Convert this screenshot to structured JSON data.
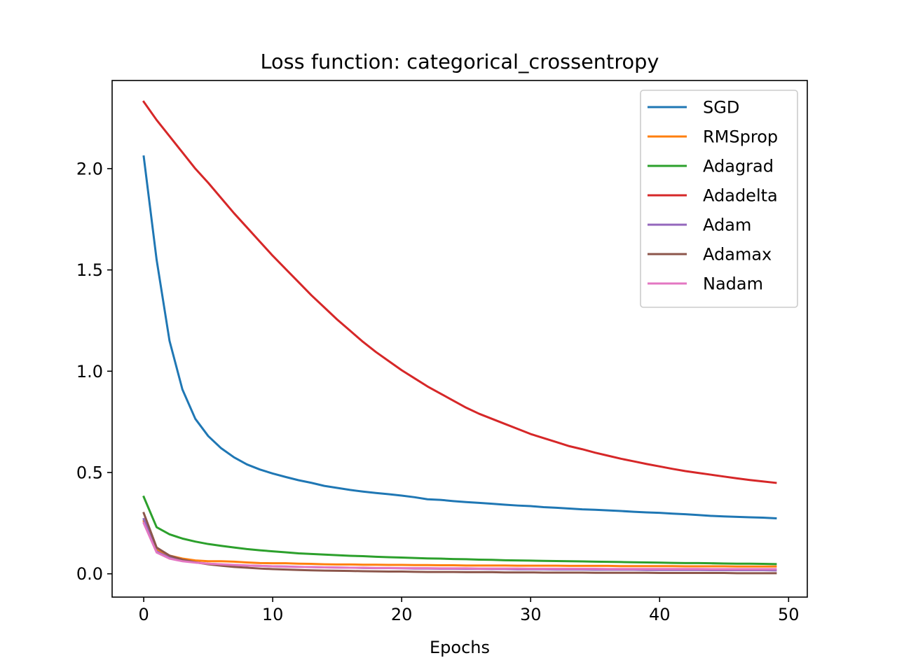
{
  "chart_data": {
    "type": "line",
    "title": "Loss function: categorical_crossentropy",
    "xlabel": "Epochs",
    "ylabel": "",
    "xlim": [
      -2.45,
      51.45
    ],
    "ylim": [
      -0.115,
      2.435
    ],
    "xticks": [
      0,
      10,
      20,
      30,
      40,
      50
    ],
    "xtick_labels": [
      "0",
      "10",
      "20",
      "30",
      "40",
      "50"
    ],
    "yticks": [
      0.0,
      0.5,
      1.0,
      1.5,
      2.0
    ],
    "ytick_labels": [
      "0.0",
      "0.5",
      "1.0",
      "1.5",
      "2.0"
    ],
    "grid": false,
    "legend_position": "top-right",
    "x": [
      0,
      1,
      2,
      3,
      4,
      5,
      6,
      7,
      8,
      9,
      10,
      11,
      12,
      13,
      14,
      15,
      16,
      17,
      18,
      19,
      20,
      21,
      22,
      23,
      24,
      25,
      26,
      27,
      28,
      29,
      30,
      31,
      32,
      33,
      34,
      35,
      36,
      37,
      38,
      39,
      40,
      41,
      42,
      43,
      44,
      45,
      46,
      47,
      48,
      49
    ],
    "series": [
      {
        "name": "SGD",
        "color": "#1f77b4",
        "values": [
          2.06,
          1.55,
          1.15,
          0.91,
          0.765,
          0.68,
          0.62,
          0.575,
          0.54,
          0.515,
          0.495,
          0.478,
          0.462,
          0.449,
          0.434,
          0.424,
          0.414,
          0.406,
          0.399,
          0.393,
          0.386,
          0.378,
          0.368,
          0.365,
          0.359,
          0.354,
          0.35,
          0.346,
          0.341,
          0.337,
          0.334,
          0.329,
          0.326,
          0.322,
          0.318,
          0.316,
          0.313,
          0.31,
          0.306,
          0.303,
          0.301,
          0.297,
          0.294,
          0.29,
          0.286,
          0.283,
          0.281,
          0.279,
          0.277,
          0.274
        ]
      },
      {
        "name": "RMSprop",
        "color": "#ff7f0e",
        "values": [
          0.26,
          0.12,
          0.09,
          0.075,
          0.066,
          0.062,
          0.062,
          0.06,
          0.056,
          0.053,
          0.052,
          0.052,
          0.05,
          0.049,
          0.047,
          0.046,
          0.046,
          0.045,
          0.045,
          0.044,
          0.044,
          0.043,
          0.043,
          0.042,
          0.042,
          0.041,
          0.041,
          0.041,
          0.041,
          0.04,
          0.04,
          0.04,
          0.04,
          0.039,
          0.039,
          0.039,
          0.039,
          0.038,
          0.038,
          0.038,
          0.038,
          0.038,
          0.037,
          0.037,
          0.037,
          0.037,
          0.036,
          0.036,
          0.036,
          0.036
        ]
      },
      {
        "name": "Adagrad",
        "color": "#2ca02c",
        "values": [
          0.38,
          0.23,
          0.195,
          0.174,
          0.159,
          0.147,
          0.138,
          0.13,
          0.122,
          0.116,
          0.111,
          0.106,
          0.101,
          0.098,
          0.095,
          0.092,
          0.089,
          0.087,
          0.084,
          0.082,
          0.08,
          0.078,
          0.076,
          0.075,
          0.073,
          0.072,
          0.07,
          0.069,
          0.067,
          0.066,
          0.065,
          0.064,
          0.063,
          0.062,
          0.061,
          0.06,
          0.059,
          0.058,
          0.057,
          0.056,
          0.055,
          0.054,
          0.053,
          0.053,
          0.052,
          0.051,
          0.05,
          0.05,
          0.049,
          0.048
        ]
      },
      {
        "name": "Adadelta",
        "color": "#d62728",
        "values": [
          2.33,
          2.24,
          2.16,
          2.08,
          2.0,
          1.93,
          1.855,
          1.78,
          1.71,
          1.64,
          1.57,
          1.505,
          1.44,
          1.375,
          1.315,
          1.255,
          1.2,
          1.145,
          1.095,
          1.05,
          1.005,
          0.965,
          0.925,
          0.89,
          0.855,
          0.82,
          0.79,
          0.765,
          0.74,
          0.715,
          0.69,
          0.67,
          0.65,
          0.63,
          0.615,
          0.598,
          0.583,
          0.568,
          0.555,
          0.542,
          0.53,
          0.518,
          0.507,
          0.498,
          0.489,
          0.48,
          0.471,
          0.463,
          0.456,
          0.449
        ]
      },
      {
        "name": "Adam",
        "color": "#9467bd",
        "values": [
          0.27,
          0.11,
          0.08,
          0.065,
          0.056,
          0.05,
          0.046,
          0.043,
          0.041,
          0.039,
          0.037,
          0.036,
          0.034,
          0.033,
          0.032,
          0.031,
          0.03,
          0.029,
          0.028,
          0.028,
          0.027,
          0.026,
          0.026,
          0.025,
          0.025,
          0.024,
          0.024,
          0.023,
          0.023,
          0.022,
          0.022,
          0.022,
          0.021,
          0.021,
          0.021,
          0.02,
          0.02,
          0.02,
          0.02,
          0.019,
          0.019,
          0.019,
          0.019,
          0.019,
          0.018,
          0.018,
          0.018,
          0.018,
          0.018,
          0.017
        ]
      },
      {
        "name": "Adamax",
        "color": "#8c564b",
        "values": [
          0.3,
          0.13,
          0.09,
          0.07,
          0.057,
          0.047,
          0.04,
          0.034,
          0.03,
          0.026,
          0.023,
          0.021,
          0.019,
          0.017,
          0.016,
          0.015,
          0.014,
          0.013,
          0.012,
          0.011,
          0.011,
          0.01,
          0.009,
          0.009,
          0.009,
          0.008,
          0.008,
          0.008,
          0.007,
          0.007,
          0.007,
          0.006,
          0.006,
          0.006,
          0.006,
          0.005,
          0.005,
          0.005,
          0.005,
          0.005,
          0.004,
          0.004,
          0.004,
          0.004,
          0.004,
          0.004,
          0.003,
          0.003,
          0.003,
          0.003
        ]
      },
      {
        "name": "Nadam",
        "color": "#e377c2",
        "values": [
          0.25,
          0.105,
          0.075,
          0.062,
          0.055,
          0.05,
          0.047,
          0.044,
          0.041,
          0.039,
          0.037,
          0.035,
          0.034,
          0.033,
          0.032,
          0.031,
          0.03,
          0.03,
          0.029,
          0.029,
          0.028,
          0.028,
          0.028,
          0.027,
          0.027,
          0.027,
          0.026,
          0.026,
          0.026,
          0.026,
          0.025,
          0.025,
          0.025,
          0.025,
          0.025,
          0.025,
          0.024,
          0.024,
          0.024,
          0.024,
          0.024,
          0.024,
          0.024,
          0.024,
          0.023,
          0.023,
          0.023,
          0.023,
          0.023,
          0.023
        ]
      }
    ]
  }
}
